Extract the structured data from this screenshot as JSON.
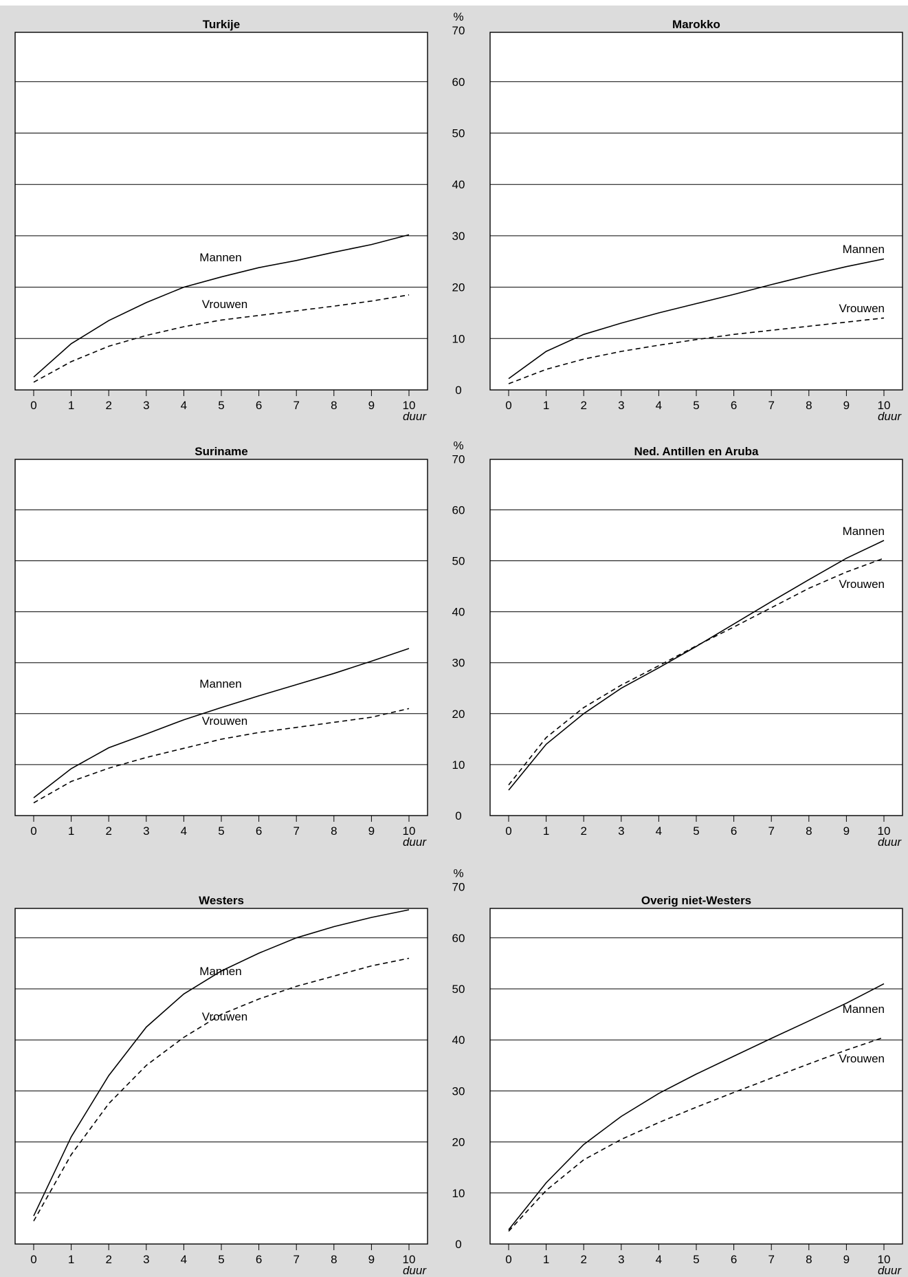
{
  "colors": {
    "background": "#dcdcdc",
    "plot": "#ffffff",
    "ink": "#000000"
  },
  "chart_data": [
    {
      "type": "line",
      "title": "Turkije",
      "x": [
        0,
        1,
        2,
        3,
        4,
        5,
        6,
        7,
        8,
        9,
        10
      ],
      "xlabel": "duur",
      "ylabel": "",
      "ylim": [
        0,
        70
      ],
      "yticks": [
        0,
        10,
        20,
        30,
        40,
        50,
        60,
        70
      ],
      "grid": true,
      "series": [
        {
          "name": "Mannen",
          "style": "solid",
          "values": [
            2.5,
            9,
            13.5,
            17,
            20,
            22,
            23.8,
            25.2,
            26.8,
            28.3,
            30.2
          ]
        },
        {
          "name": "Vrouwen",
          "style": "dashed",
          "values": [
            1.5,
            5.5,
            8.5,
            10.6,
            12.3,
            13.6,
            14.5,
            15.4,
            16.3,
            17.3,
            18.5
          ]
        }
      ]
    },
    {
      "type": "line",
      "title": "Marokko",
      "x": [
        0,
        1,
        2,
        3,
        4,
        5,
        6,
        7,
        8,
        9,
        10
      ],
      "xlabel": "duur",
      "ylabel": "%",
      "ylim": [
        0,
        70
      ],
      "yticks": [
        0,
        10,
        20,
        30,
        40,
        50,
        60,
        70
      ],
      "grid": true,
      "series": [
        {
          "name": "Mannen",
          "style": "solid",
          "values": [
            2.2,
            7.5,
            10.8,
            13,
            15,
            16.8,
            18.6,
            20.5,
            22.3,
            24,
            25.5
          ]
        },
        {
          "name": "Vrouwen",
          "style": "dashed",
          "values": [
            1.2,
            4,
            6,
            7.5,
            8.7,
            9.8,
            10.8,
            11.6,
            12.4,
            13.2,
            14
          ]
        }
      ]
    },
    {
      "type": "line",
      "title": "Suriname",
      "x": [
        0,
        1,
        2,
        3,
        4,
        5,
        6,
        7,
        8,
        9,
        10
      ],
      "xlabel": "duur",
      "ylabel": "",
      "ylim": [
        0,
        70
      ],
      "yticks": [
        0,
        10,
        20,
        30,
        40,
        50,
        60,
        70
      ],
      "grid": true,
      "series": [
        {
          "name": "Mannen",
          "style": "solid",
          "values": [
            3.5,
            9.2,
            13.3,
            16,
            18.8,
            21.2,
            23.5,
            25.7,
            27.9,
            30.3,
            32.8
          ]
        },
        {
          "name": "Vrouwen",
          "style": "dashed",
          "values": [
            2.5,
            6.7,
            9.3,
            11.4,
            13.2,
            15,
            16.3,
            17.3,
            18.3,
            19.3,
            21
          ]
        }
      ]
    },
    {
      "type": "line",
      "title": "Ned. Antillen en Aruba",
      "x": [
        0,
        1,
        2,
        3,
        4,
        5,
        6,
        7,
        8,
        9,
        10
      ],
      "xlabel": "duur",
      "ylabel": "%",
      "ylim": [
        0,
        70
      ],
      "yticks": [
        0,
        10,
        20,
        30,
        40,
        50,
        60,
        70
      ],
      "grid": true,
      "series": [
        {
          "name": "Mannen",
          "style": "solid",
          "values": [
            5,
            14,
            20,
            25,
            29,
            33.2,
            37.6,
            42,
            46.3,
            50.5,
            54
          ]
        },
        {
          "name": "Vrouwen",
          "style": "dashed",
          "values": [
            6,
            15.3,
            21.2,
            25.6,
            29.4,
            33.3,
            37,
            40.8,
            44.6,
            47.8,
            50.5
          ]
        }
      ]
    },
    {
      "type": "line",
      "title": "Westers",
      "x": [
        0,
        1,
        2,
        3,
        4,
        5,
        6,
        7,
        8,
        9,
        10
      ],
      "xlabel": "duur",
      "ylabel": "",
      "ylim": [
        0,
        70
      ],
      "yticks": [
        0,
        10,
        20,
        30,
        40,
        50,
        60,
        70
      ],
      "grid": true,
      "series": [
        {
          "name": "Mannen",
          "style": "solid",
          "values": [
            5.5,
            21,
            33,
            42.5,
            49,
            53.5,
            57,
            60,
            62.2,
            64,
            65.5
          ]
        },
        {
          "name": "Vrouwen",
          "style": "dashed",
          "values": [
            4.5,
            17.5,
            27.5,
            35,
            40.5,
            45,
            48,
            50.5,
            52.5,
            54.5,
            56
          ]
        }
      ]
    },
    {
      "type": "line",
      "title": "Overig niet-Westers",
      "x": [
        0,
        1,
        2,
        3,
        4,
        5,
        6,
        7,
        8,
        9,
        10
      ],
      "xlabel": "duur",
      "ylabel": "%",
      "ylim": [
        0,
        70
      ],
      "yticks": [
        0,
        10,
        20,
        30,
        40,
        50,
        60,
        70
      ],
      "grid": true,
      "series": [
        {
          "name": "Mannen",
          "style": "solid",
          "values": [
            2.8,
            12,
            19.5,
            25,
            29.5,
            33.3,
            36.8,
            40.3,
            43.7,
            47.2,
            51
          ]
        },
        {
          "name": "Vrouwen",
          "style": "dashed",
          "values": [
            2.5,
            10.5,
            16.5,
            20.5,
            23.8,
            26.8,
            29.7,
            32.5,
            35.3,
            38,
            40.5
          ]
        }
      ]
    }
  ]
}
